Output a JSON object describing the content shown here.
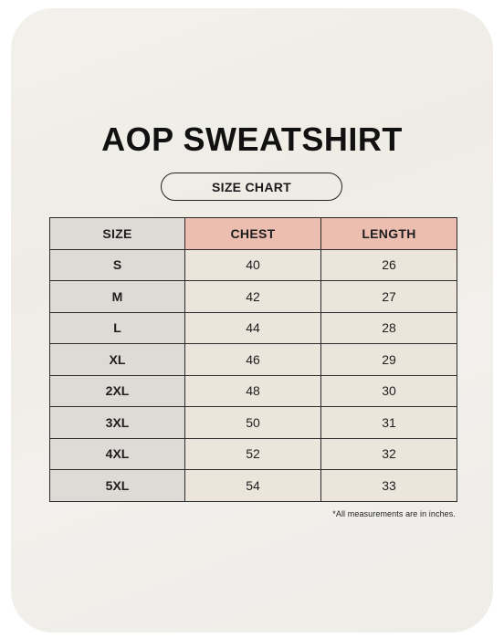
{
  "title": "AOP SWEATSHIRT",
  "subtitle": "SIZE CHART",
  "table": {
    "headers": [
      "SIZE",
      "CHEST",
      "LENGTH"
    ],
    "rows": [
      [
        "S",
        "40",
        "26"
      ],
      [
        "M",
        "42",
        "27"
      ],
      [
        "L",
        "44",
        "28"
      ],
      [
        "XL",
        "46",
        "29"
      ],
      [
        "2XL",
        "48",
        "30"
      ],
      [
        "3XL",
        "50",
        "31"
      ],
      [
        "4XL",
        "52",
        "32"
      ],
      [
        "5XL",
        "54",
        "33"
      ]
    ]
  },
  "footnote": "*All measurements are in inches.",
  "colors": {
    "background": "#efece6",
    "header_accent": "#ecbeb0",
    "size_column": "#dedad6",
    "value_cells": "#ece5dc",
    "corner_accent": "#e57b5b"
  }
}
